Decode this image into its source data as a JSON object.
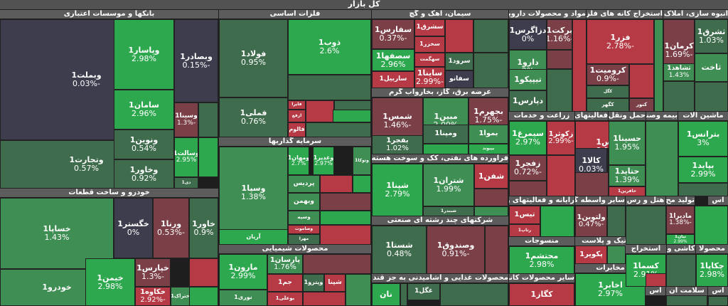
{
  "header": {
    "title": "کل بازار"
  },
  "colors": {
    "strong_up": "#2ea84f",
    "up": "#3f8e54",
    "flat_up": "#3f6c4d",
    "flat": "#3d3d4e",
    "down": "#7a3f47",
    "strong_down": "#b53a45",
    "muted": "#44444f"
  },
  "chart_data": {
    "type": "treemap",
    "title": "کل بازار",
    "sectors": [
      {
        "name": "بانکها و موسسات اعتباری"
      },
      {
        "name": "خودرو و ساخت قطعات"
      },
      {
        "name": "فلزات اساسی"
      },
      {
        "name": "سرمایه گذاریها"
      },
      {
        "name": "محصولات شیمیایی"
      },
      {
        "name": "سیمان، آهک و گچ"
      },
      {
        "name": "عرضه برق، گاز، بخاروآب گرم"
      },
      {
        "name": "فراورده های نفتی، کک و سوخت هسته ای"
      },
      {
        "name": "شرکتهای چند رشته ای صنعتی"
      },
      {
        "name": "محصولات غذایی و آشامیدنی به جز قند و ش"
      },
      {
        "name": "مواد و محصولات دارویی"
      },
      {
        "name": "استخراج کانه های فلزی"
      },
      {
        "name": "انبوه سازی، املاک و"
      },
      {
        "name": "زراعت و خدمات"
      },
      {
        "name": "فعالیتهای کمکی به نها"
      },
      {
        "name": "حمل ونقل، ان"
      },
      {
        "name": "بیمه وصندو"
      },
      {
        "name": "ماشین آلات"
      },
      {
        "name": "رایانه و فعالیتهای وا"
      },
      {
        "name": "سایر واسطه گری"
      },
      {
        "name": "هتل و رس"
      },
      {
        "name": "تولید مح"
      },
      {
        "name": "لاستیک و پلاست"
      },
      {
        "name": "منسوجات"
      },
      {
        "name": "سایر محصولات کانی غ"
      },
      {
        "name": "مخابرات"
      },
      {
        "name": "استخراج"
      },
      {
        "name": "کاشی و"
      },
      {
        "name": "محصولا"
      },
      {
        "name": "اس"
      },
      {
        "name": "سلامت ان"
      },
      {
        "name": "اس"
      },
      {
        "name": "اس"
      }
    ],
    "tiles": [
      {
        "sector": "بانکها و موسسات اعتباری",
        "symbol": "وبملت1",
        "change": "-0.03%",
        "value": -0.03
      },
      {
        "sector": "بانکها و موسسات اعتباری",
        "symbol": "وتجارت1",
        "change": "0.57%",
        "value": 0.57
      },
      {
        "sector": "بانکها و موسسات اعتباری",
        "symbol": "وپاسار1",
        "change": "2.98%",
        "value": 2.98
      },
      {
        "sector": "بانکها و موسسات اعتباری",
        "symbol": "وبصادر1",
        "change": "-0.15%",
        "value": -0.15
      },
      {
        "sector": "بانکها و موسسات اعتباری",
        "symbol": "سامان1",
        "change": "2.96%",
        "value": 2.96
      },
      {
        "sector": "بانکها و موسسات اعتباری",
        "symbol": "ونوین1",
        "change": "0.54%",
        "value": 0.54
      },
      {
        "sector": "بانکها و موسسات اعتباری",
        "symbol": "وخاور1",
        "change": "0.92%",
        "value": 0.92
      },
      {
        "sector": "بانکها و موسسات اعتباری",
        "symbol": "وسینا1",
        "change": "-1.3%",
        "value": -1.3
      },
      {
        "sector": "بانکها و موسسات اعتباری",
        "symbol": "وسالت1",
        "change": "2.95%",
        "value": 2.95
      },
      {
        "sector": "بانکها و موسسات اعتباری",
        "symbol": "دی1",
        "change": "",
        "value": 0.2
      },
      {
        "sector": "خودرو و ساخت قطعات",
        "symbol": "خساپا1",
        "change": "1.43%",
        "value": 1.43
      },
      {
        "sector": "خودرو و ساخت قطعات",
        "symbol": "خودرو1",
        "change": "",
        "value": 1.5
      },
      {
        "sector": "خودرو و ساخت قطعات",
        "symbol": "خگستر1",
        "change": "0%",
        "value": 0
      },
      {
        "sector": "خودرو و ساخت قطعات",
        "symbol": "ورنا1",
        "change": "-0.53%",
        "value": -0.53
      },
      {
        "sector": "خودرو و ساخت قطعات",
        "symbol": "خاور1",
        "change": "0.9%",
        "value": 0.9
      },
      {
        "sector": "خودرو و ساخت قطعات",
        "symbol": "خیمن1",
        "change": "2.98%",
        "value": 2.98
      },
      {
        "sector": "خودرو و ساخت قطعات",
        "symbol": "خپارس1",
        "change": "-1.3%",
        "value": -1.3
      },
      {
        "sector": "خودرو و ساخت قطعات",
        "symbol": "خکاوه1",
        "change": "-2.92%",
        "value": -2.92
      },
      {
        "sector": "خودرو و ساخت قطعات",
        "symbol": "ختراک1",
        "change": "",
        "value": 2.2
      },
      {
        "sector": "فلزات اساسی",
        "symbol": "فولاد1",
        "change": "0.95%",
        "value": 0.95
      },
      {
        "sector": "فلزات اساسی",
        "symbol": "فملی1",
        "change": "0.76%",
        "value": 0.76
      },
      {
        "sector": "فلزات اساسی",
        "symbol": "ذوب1",
        "change": "2.6%",
        "value": 2.6
      },
      {
        "sector": "فلزات اساسی",
        "symbol": "فایرا",
        "change": "",
        "value": -2.5
      },
      {
        "sector": "فلزات اساسی",
        "symbol": "ارفع",
        "change": "",
        "value": -2.4
      },
      {
        "sector": "فلزات اساسی",
        "symbol": "فجر",
        "change": "",
        "value": -0.4
      },
      {
        "sector": "فلزات اساسی",
        "symbol": "فالوم",
        "change": "",
        "value": -2.4
      },
      {
        "sector": "سرمایه گذاریها",
        "symbol": "وسپا1",
        "change": "1.38%",
        "value": 1.38
      },
      {
        "sector": "سرمایه گذاریها",
        "symbol": "ومهان1",
        "change": "2.7%",
        "value": 2.7
      },
      {
        "sector": "سرمایه گذاریها",
        "symbol": "وغدیر1",
        "change": "2.97%",
        "value": 2.97
      },
      {
        "sector": "سرمایه گذاریها",
        "symbol": "وتوکا1",
        "change": "",
        "value": 2.0
      },
      {
        "sector": "سرمایه گذاریها",
        "symbol": "پردیس",
        "change": "",
        "value": 2.2
      },
      {
        "sector": "سرمایه گذاریها",
        "symbol": "وبهمن",
        "change": "",
        "value": 2.3
      },
      {
        "sector": "سرمایه گذاریها",
        "symbol": "وسپه",
        "change": "",
        "value": 2.1
      },
      {
        "sector": "سرمایه گذاریها",
        "symbol": "وصاموت",
        "change": "",
        "value": -2.3
      },
      {
        "sector": "سرمایه گذاریها",
        "symbol": "آریان",
        "change": "",
        "value": 2.5
      },
      {
        "sector": "سرمایه گذاریها",
        "symbol": "مهرا",
        "change": "",
        "value": 0.2
      },
      {
        "sector": "محصولات شیمیایی",
        "symbol": "مارون1",
        "change": "2.99%",
        "value": 2.99
      },
      {
        "sector": "محصولات شیمیایی",
        "symbol": "نوری1",
        "change": "",
        "value": 1.2
      },
      {
        "sector": "محصولات شیمیایی",
        "symbol": "پارسان1",
        "change": "1.76%",
        "value": 1.76
      },
      {
        "sector": "محصولات شیمیایی",
        "symbol": "جم1",
        "change": "",
        "value": -2.8
      },
      {
        "sector": "محصولات شیمیایی",
        "symbol": "بوعلی1",
        "change": "",
        "value": -2.9
      },
      {
        "sector": "محصولات شیمیایی",
        "symbol": "وپترو1",
        "change": "",
        "value": 0.1
      },
      {
        "sector": "محصولات شیمیایی",
        "symbol": "شپنا",
        "change": "",
        "value": -2.5
      },
      {
        "sector": "سیمان، آهک و گچ",
        "symbol": "سفارس1",
        "change": "-0.37%",
        "value": -0.37
      },
      {
        "sector": "سیمان، آهک و گچ",
        "symbol": "سشرق1",
        "change": "",
        "value": -2.6
      },
      {
        "sector": "سیمان، آهک و گچ",
        "symbol": "سخزر1",
        "change": "",
        "value": -2.6
      },
      {
        "sector": "سیمان، آهک و گچ",
        "symbol": "سهگمت",
        "change": "",
        "value": -2.7
      },
      {
        "sector": "سیمان، آهک و گچ",
        "symbol": "سصفها1",
        "change": "2.96%",
        "value": 2.96
      },
      {
        "sector": "سیمان، آهک و گچ",
        "symbol": "ساربیل1",
        "change": "",
        "value": -2.6
      },
      {
        "sector": "سیمان، آهک و گچ",
        "symbol": "ساینا1",
        "change": "-2.99%",
        "value": -2.99
      },
      {
        "sector": "سیمان، آهک و گچ",
        "symbol": "سرود1",
        "change": "",
        "value": 0.1
      },
      {
        "sector": "سیمان، آهک و گچ",
        "symbol": "سفانو",
        "change": "",
        "value": -0.2
      },
      {
        "sector": "عرضه برق، گاز، بخاروآب گرم",
        "symbol": "شمس1",
        "change": "-1.46%",
        "value": -1.46
      },
      {
        "sector": "عرضه برق، گاز، بخاروآب گرم",
        "symbol": "مبین1",
        "change": "2.09%",
        "value": 2.09
      },
      {
        "sector": "عرضه برق، گاز، بخاروآب گرم",
        "symbol": "بجهرم1",
        "change": "-1.75%",
        "value": -1.75
      },
      {
        "sector": "عرضه برق، گاز، بخاروآب گرم",
        "symbol": "بفجر1",
        "change": "1.02%",
        "value": 1.02
      },
      {
        "sector": "عرضه برق، گاز، بخاروآب گرم",
        "symbol": "ومپنا1",
        "change": "",
        "value": 0.5
      },
      {
        "sector": "عرضه برق، گاز، بخاروآب گرم",
        "symbol": "بموا1",
        "change": "",
        "value": 1.2
      },
      {
        "sector": "عرضه برق، گاز، بخاروآب گرم",
        "symbol": "بپیوند",
        "change": "",
        "value": 2.5
      },
      {
        "sector": "فراورده های نفتی، کک و سوخت هسته ای",
        "symbol": "شپنا1",
        "change": "2.79%",
        "value": 2.79
      },
      {
        "sector": "فراورده های نفتی، کک و سوخت هسته ای",
        "symbol": "شتران1",
        "change": "1.99%",
        "value": 1.99
      },
      {
        "sector": "فراورده های نفتی، کک و سوخت هسته ای",
        "symbol": "شفن1",
        "change": "",
        "value": -2.3
      },
      {
        "sector": "فراورده های نفتی، کک و سوخت هسته ای",
        "symbol": "شبندر1",
        "change": "",
        "value": 0.2
      },
      {
        "sector": "شرکتهای چند رشته ای صنعتی",
        "symbol": "شستا1",
        "change": "0.48%",
        "value": 0.48
      },
      {
        "sector": "شرکتهای چند رشته ای صنعتی",
        "symbol": "وصندوق1",
        "change": "-0.91%",
        "value": -0.91
      },
      {
        "sector": "محصولات غذایی و آشامیدنی به جز قند و ش",
        "symbol": "نان",
        "change": "",
        "value": 2.5
      },
      {
        "sector": "محصولات غذایی و آشامیدنی به جز قند و ش",
        "symbol": "غگل1",
        "change": "",
        "value": 0.3
      },
      {
        "sector": "مواد و محصولات دارویی",
        "symbol": "دزاگرس1",
        "change": "0%",
        "value": 0
      },
      {
        "sector": "مواد و محصولات دارویی",
        "symbol": "برکت1",
        "change": "-1.16%",
        "value": -1.16
      },
      {
        "sector": "مواد و محصولات دارویی",
        "symbol": "دارو1",
        "change": "2%",
        "value": 2.0
      },
      {
        "sector": "مواد و محصولات دارویی",
        "symbol": "تیپیکو1",
        "change": "",
        "value": 1.4
      },
      {
        "sector": "مواد و محصولات دارویی",
        "symbol": "دپارس1",
        "change": "",
        "value": 0.2
      },
      {
        "sector": "استخراج کانه های فلزی",
        "symbol": "فزر1",
        "change": "-2.78%",
        "value": -2.78
      },
      {
        "sector": "استخراج کانه های فلزی",
        "symbol": "کرومیت1",
        "change": "-0.9%",
        "value": -0.9
      },
      {
        "sector": "استخراج کانه های فلزی",
        "symbol": "کگل",
        "change": "",
        "value": 0.3
      },
      {
        "sector": "استخراج کانه های فلزی",
        "symbol": "کگهر",
        "change": "",
        "value": 0.1
      },
      {
        "sector": "استخراج کانه های فلزی",
        "symbol": "کنور",
        "change": "",
        "value": -0.5
      },
      {
        "sector": "انبوه سازی، املاک و",
        "symbol": "کرمان1",
        "change": "-1.69%",
        "value": -1.69
      },
      {
        "sector": "انبوه سازی، املاک و",
        "symbol": "ثشرق1",
        "change": "1.03%",
        "value": 1.03
      },
      {
        "sector": "انبوه سازی، املاک و",
        "symbol": "ثشاهد1",
        "change": "1.43%",
        "value": 1.43
      },
      {
        "sector": "انبوه سازی، املاک و",
        "symbol": "ثاخت",
        "change": "",
        "value": 2.4
      },
      {
        "sector": "فعالیتهای کمکی به نها",
        "symbol": "بورس1",
        "change": "-2.11%",
        "value": -2.11
      },
      {
        "sector": "فعالیتهای کمکی به نها",
        "symbol": "کالا1",
        "change": "0.03%",
        "value": 0.03
      },
      {
        "sector": "حمل ونقل، ان",
        "symbol": "حسینا1",
        "change": "1.95%",
        "value": 1.95
      },
      {
        "sector": "حمل ونقل، ان",
        "symbol": "حتاید1",
        "change": "1.39%",
        "value": 1.39
      },
      {
        "sector": "حمل ونقل، ان",
        "symbol": "حافرین1",
        "change": "",
        "value": -2.4
      },
      {
        "sector": "ماشین آلات",
        "symbol": "بترانس1",
        "change": "3%",
        "value": 3.0
      },
      {
        "sector": "ماشین آلات",
        "symbol": "بپاید1",
        "change": "2.99%",
        "value": 2.99
      },
      {
        "sector": "زراعت و خدمات",
        "symbol": "سیمرغ1",
        "change": "2.97%",
        "value": 2.97
      },
      {
        "sector": "زراعت و خدمات",
        "symbol": "زکوثر1",
        "change": "-2.99%",
        "value": -2.99
      },
      {
        "sector": "زراعت و خدمات",
        "symbol": "زفجر1",
        "change": "-0.72%",
        "value": -0.72
      },
      {
        "sector": "رایانه و فعالیتهای وا",
        "symbol": "تیس1",
        "change": "",
        "value": -2.8
      },
      {
        "sector": "رایانه و فعالیتهای وا",
        "symbol": "رتاپ1",
        "change": "",
        "value": -2.5
      },
      {
        "sector": "سایر واسطه گری",
        "symbol": "ولتوین1",
        "change": "-0.47%",
        "value": -0.47
      },
      {
        "sector": "تولید مح",
        "symbol": "مادیرا1",
        "change": "-1.38%",
        "value": -1.38
      },
      {
        "sector": "تولید مح",
        "symbol": "نیان1",
        "change": "2.99%",
        "value": 2.99
      },
      {
        "sector": "لاستیک و پلاست",
        "symbol": "پکویر1",
        "change": "",
        "value": -2.5
      },
      {
        "sector": "منسوجات",
        "symbol": "محتشم1",
        "change": "2.98%",
        "value": 2.98
      },
      {
        "sector": "سایر محصولات کانی غ",
        "symbol": "کگاز1",
        "change": "",
        "value": -2.6
      },
      {
        "sector": "مخابرات",
        "symbol": "اخابر1",
        "change": "2.97%",
        "value": 2.97
      },
      {
        "sector": "استخراج",
        "symbol": "کسما1",
        "change": "2.91%",
        "value": 2.91
      },
      {
        "sector": "محصولا",
        "symbol": "چکاپا1",
        "change": "2.98%",
        "value": 2.98
      }
    ]
  }
}
